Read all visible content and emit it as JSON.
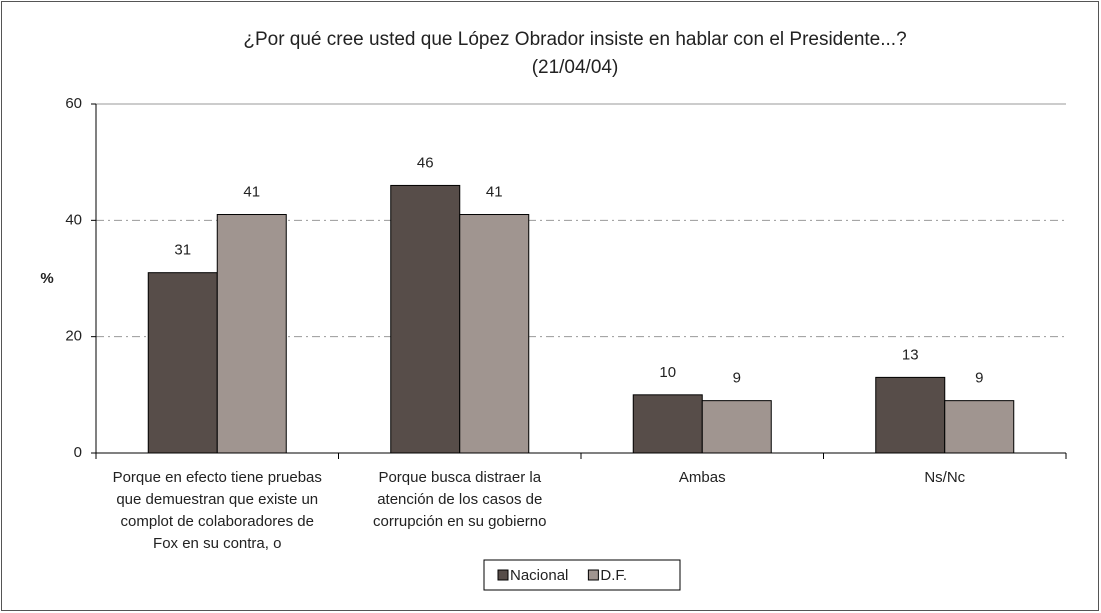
{
  "chart_data": {
    "type": "bar",
    "title": "¿Por qué cree usted que López Obrador insiste en hablar con el Presidente...?",
    "subtitle": "(21/04/04)",
    "y_label": "%",
    "categories": [
      "Porque en efecto tiene pruebas que demuestran que existe un complot de colaboradores de Fox en su contra, o",
      "Porque busca distraer la atención de los casos de corrupción en su gobierno",
      "Ambas",
      "Ns/Nc"
    ],
    "series": [
      {
        "name": "Nacional",
        "color": "#574d49",
        "values": [
          31,
          46,
          10,
          13
        ]
      },
      {
        "name": "D.F.",
        "color": "#a09590",
        "values": [
          41,
          41,
          9,
          9
        ]
      }
    ],
    "ylim": [
      0,
      60
    ],
    "yticks": [
      0,
      20,
      40,
      60
    ],
    "grid": true,
    "legend": "bottom"
  }
}
